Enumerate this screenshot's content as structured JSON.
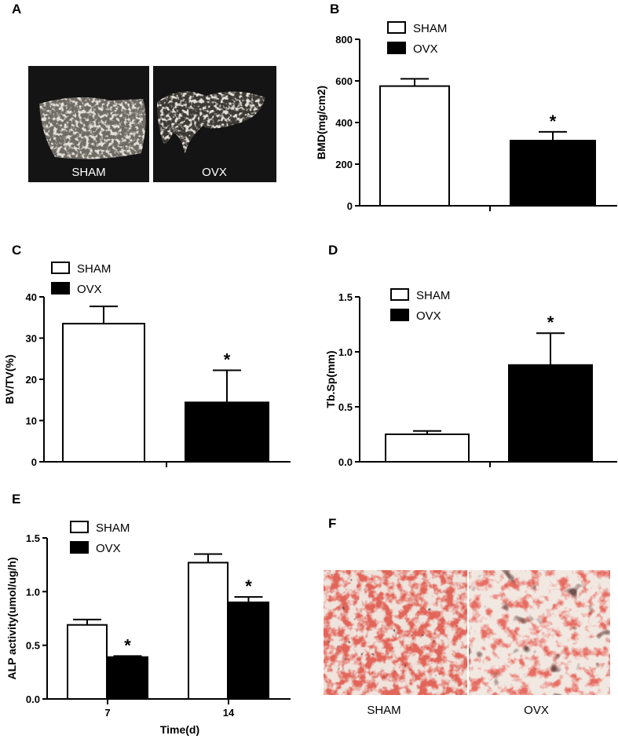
{
  "panels": {
    "A": {
      "label": "A",
      "images": [
        {
          "caption": "SHAM"
        },
        {
          "caption": "OVX"
        }
      ]
    },
    "F": {
      "label": "F",
      "images": [
        {
          "caption": "SHAM"
        },
        {
          "caption": "OVX"
        }
      ]
    }
  },
  "colors": {
    "sham_fill": "#ffffff",
    "ovx_fill": "#000000",
    "micro_ct_bg": "#141414",
    "micro_ct_bone": "#b9b3a8",
    "stain_bg": "#efe3dc",
    "stain_red": "#c22218",
    "stain_dark": "#2a1512"
  },
  "chart_data": [
    {
      "panel": "B",
      "type": "bar",
      "ylabel": "BMD(mg/cm2)",
      "ylim": [
        0,
        800
      ],
      "yticks": [
        0,
        200,
        400,
        600,
        800
      ],
      "legend": [
        "SHAM",
        "OVX"
      ],
      "series": [
        {
          "name": "SHAM",
          "value": 575,
          "error": 35,
          "star": ""
        },
        {
          "name": "OVX",
          "value": 313,
          "error": 42,
          "star": "*"
        }
      ]
    },
    {
      "panel": "C",
      "type": "bar",
      "ylabel": "BV/TV(%)",
      "ylim": [
        0,
        40
      ],
      "yticks": [
        0,
        10,
        20,
        30,
        40
      ],
      "legend": [
        "SHAM",
        "OVX"
      ],
      "series": [
        {
          "name": "SHAM",
          "value": 33.5,
          "error": 4.2,
          "star": ""
        },
        {
          "name": "OVX",
          "value": 14.4,
          "error": 7.8,
          "star": "*"
        }
      ]
    },
    {
      "panel": "D",
      "type": "bar",
      "ylabel": "Tb.Sp(mm)",
      "ylim": [
        0,
        1.5
      ],
      "yticks": [
        "0.0",
        "0.5",
        "1.0",
        "1.5"
      ],
      "legend": [
        "SHAM",
        "OVX"
      ],
      "series": [
        {
          "name": "SHAM",
          "value": 0.25,
          "error": 0.03,
          "star": ""
        },
        {
          "name": "OVX",
          "value": 0.88,
          "error": 0.29,
          "star": "*"
        }
      ]
    },
    {
      "panel": "E",
      "type": "bar",
      "ylabel": "ALP activity(umol/ug/h)",
      "xlabel": "Time(d)",
      "ylim": [
        0,
        1.5
      ],
      "yticks": [
        "0.0",
        "0.5",
        "1.0",
        "1.5"
      ],
      "categories": [
        "7",
        "14"
      ],
      "legend": [
        "SHAM",
        "OVX"
      ],
      "series": [
        {
          "name": "SHAM",
          "values": [
            0.69,
            1.27
          ],
          "errors": [
            0.05,
            0.08
          ],
          "stars": [
            "",
            ""
          ]
        },
        {
          "name": "OVX",
          "values": [
            0.39,
            0.9
          ],
          "errors": [
            0.01,
            0.05
          ],
          "stars": [
            "*",
            "*"
          ]
        }
      ]
    }
  ]
}
